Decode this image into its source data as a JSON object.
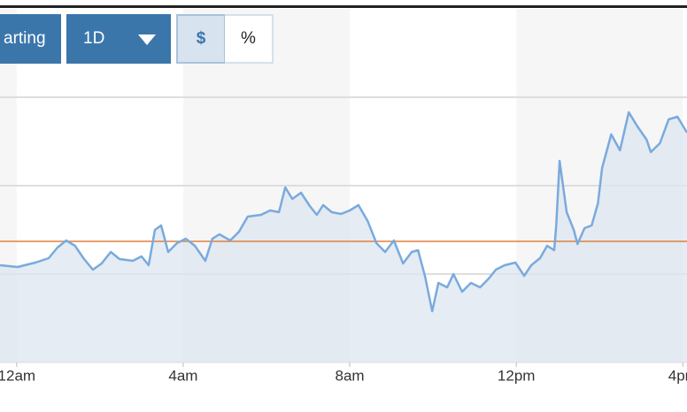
{
  "controls": {
    "chart_type": "arting",
    "range": "1D",
    "units": [
      "$",
      "%"
    ]
  },
  "chart_data": {
    "type": "line",
    "x": [
      -0.4,
      0.02,
      0.45,
      0.77,
      0.98,
      1.19,
      1.4,
      1.62,
      1.83,
      2.04,
      2.26,
      2.47,
      2.79,
      3.0,
      3.17,
      3.32,
      3.47,
      3.64,
      3.85,
      4.06,
      4.28,
      4.53,
      4.7,
      4.87,
      5.13,
      5.34,
      5.55,
      5.87,
      6.09,
      6.3,
      6.45,
      6.62,
      6.83,
      7.04,
      7.21,
      7.36,
      7.57,
      7.79,
      8.0,
      8.21,
      8.43,
      8.64,
      8.85,
      9.06,
      9.28,
      9.49,
      9.64,
      9.81,
      9.98,
      10.13,
      10.34,
      10.49,
      10.7,
      10.91,
      11.13,
      11.34,
      11.51,
      11.72,
      11.98,
      12.19,
      12.36,
      12.57,
      12.74,
      12.91,
      12.96,
      13.04,
      13.21,
      13.38,
      13.47,
      13.64,
      13.81,
      13.96,
      14.06,
      14.28,
      14.49,
      14.7,
      14.91,
      15.13,
      15.23,
      15.45,
      15.66,
      15.87,
      16.1
    ],
    "values": [
      1.1,
      1.08,
      1.13,
      1.18,
      1.3,
      1.38,
      1.32,
      1.17,
      1.05,
      1.12,
      1.25,
      1.17,
      1.15,
      1.2,
      1.1,
      1.5,
      1.55,
      1.25,
      1.35,
      1.4,
      1.32,
      1.15,
      1.4,
      1.45,
      1.38,
      1.48,
      1.65,
      1.67,
      1.72,
      1.7,
      1.98,
      1.85,
      1.92,
      1.77,
      1.67,
      1.78,
      1.7,
      1.68,
      1.72,
      1.78,
      1.6,
      1.35,
      1.25,
      1.38,
      1.12,
      1.25,
      1.27,
      0.97,
      0.58,
      0.9,
      0.85,
      1.0,
      0.8,
      0.9,
      0.85,
      0.95,
      1.05,
      1.1,
      1.13,
      0.98,
      1.1,
      1.18,
      1.32,
      1.27,
      1.55,
      2.28,
      1.7,
      1.5,
      1.34,
      1.52,
      1.55,
      1.8,
      2.2,
      2.58,
      2.4,
      2.83,
      2.67,
      2.52,
      2.38,
      2.48,
      2.75,
      2.78,
      2.6
    ],
    "color": "#7aaadd",
    "reference_line": 1.37,
    "reference_color": "#e0803e",
    "xlim": [
      -0.4,
      16.1
    ],
    "xticks": [
      {
        "value": 0,
        "label": "12am"
      },
      {
        "value": 4,
        "label": "4am"
      },
      {
        "value": 8,
        "label": "8am"
      },
      {
        "value": 12,
        "label": "12pm"
      },
      {
        "value": 16,
        "label": "4pm"
      }
    ],
    "ylim": [
      0,
      4
    ],
    "yticks": [
      1,
      2,
      3
    ],
    "grid": true
  }
}
